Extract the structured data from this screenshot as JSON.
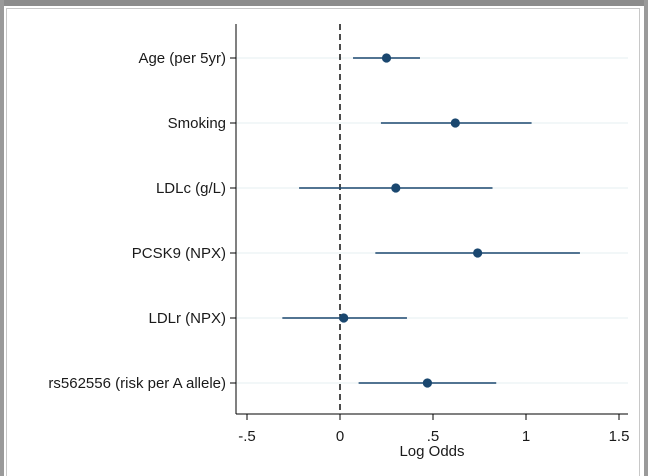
{
  "chart_data": {
    "type": "scatter",
    "subtype": "forest-plot",
    "xlabel": "Log Odds",
    "xlim": [
      -0.56,
      1.55
    ],
    "xticks": [
      {
        "value": -0.5,
        "label": "-.5"
      },
      {
        "value": 0,
        "label": "0"
      },
      {
        "value": 0.5,
        "label": ".5"
      },
      {
        "value": 1,
        "label": "1"
      },
      {
        "value": 1.5,
        "label": "1.5"
      }
    ],
    "reference_line": {
      "x": 0,
      "style": "dashed"
    },
    "grid": "horizontal",
    "colors": {
      "point": "#1a476f",
      "ci": "#1a476f",
      "grid": "#eaf2f3",
      "axis": "#000000"
    },
    "rows": [
      {
        "label": "Age (per 5yr)",
        "estimate": 0.25,
        "ci_low": 0.07,
        "ci_high": 0.43
      },
      {
        "label": "Smoking",
        "estimate": 0.62,
        "ci_low": 0.22,
        "ci_high": 1.03
      },
      {
        "label": "LDLc (g/L)",
        "estimate": 0.3,
        "ci_low": -0.22,
        "ci_high": 0.82
      },
      {
        "label": "PCSK9 (NPX)",
        "estimate": 0.74,
        "ci_low": 0.19,
        "ci_high": 1.29
      },
      {
        "label": "LDLr (NPX)",
        "estimate": 0.02,
        "ci_low": -0.31,
        "ci_high": 0.36
      },
      {
        "label": "rs562556 (risk per A allele)",
        "estimate": 0.47,
        "ci_low": 0.1,
        "ci_high": 0.84
      }
    ]
  }
}
